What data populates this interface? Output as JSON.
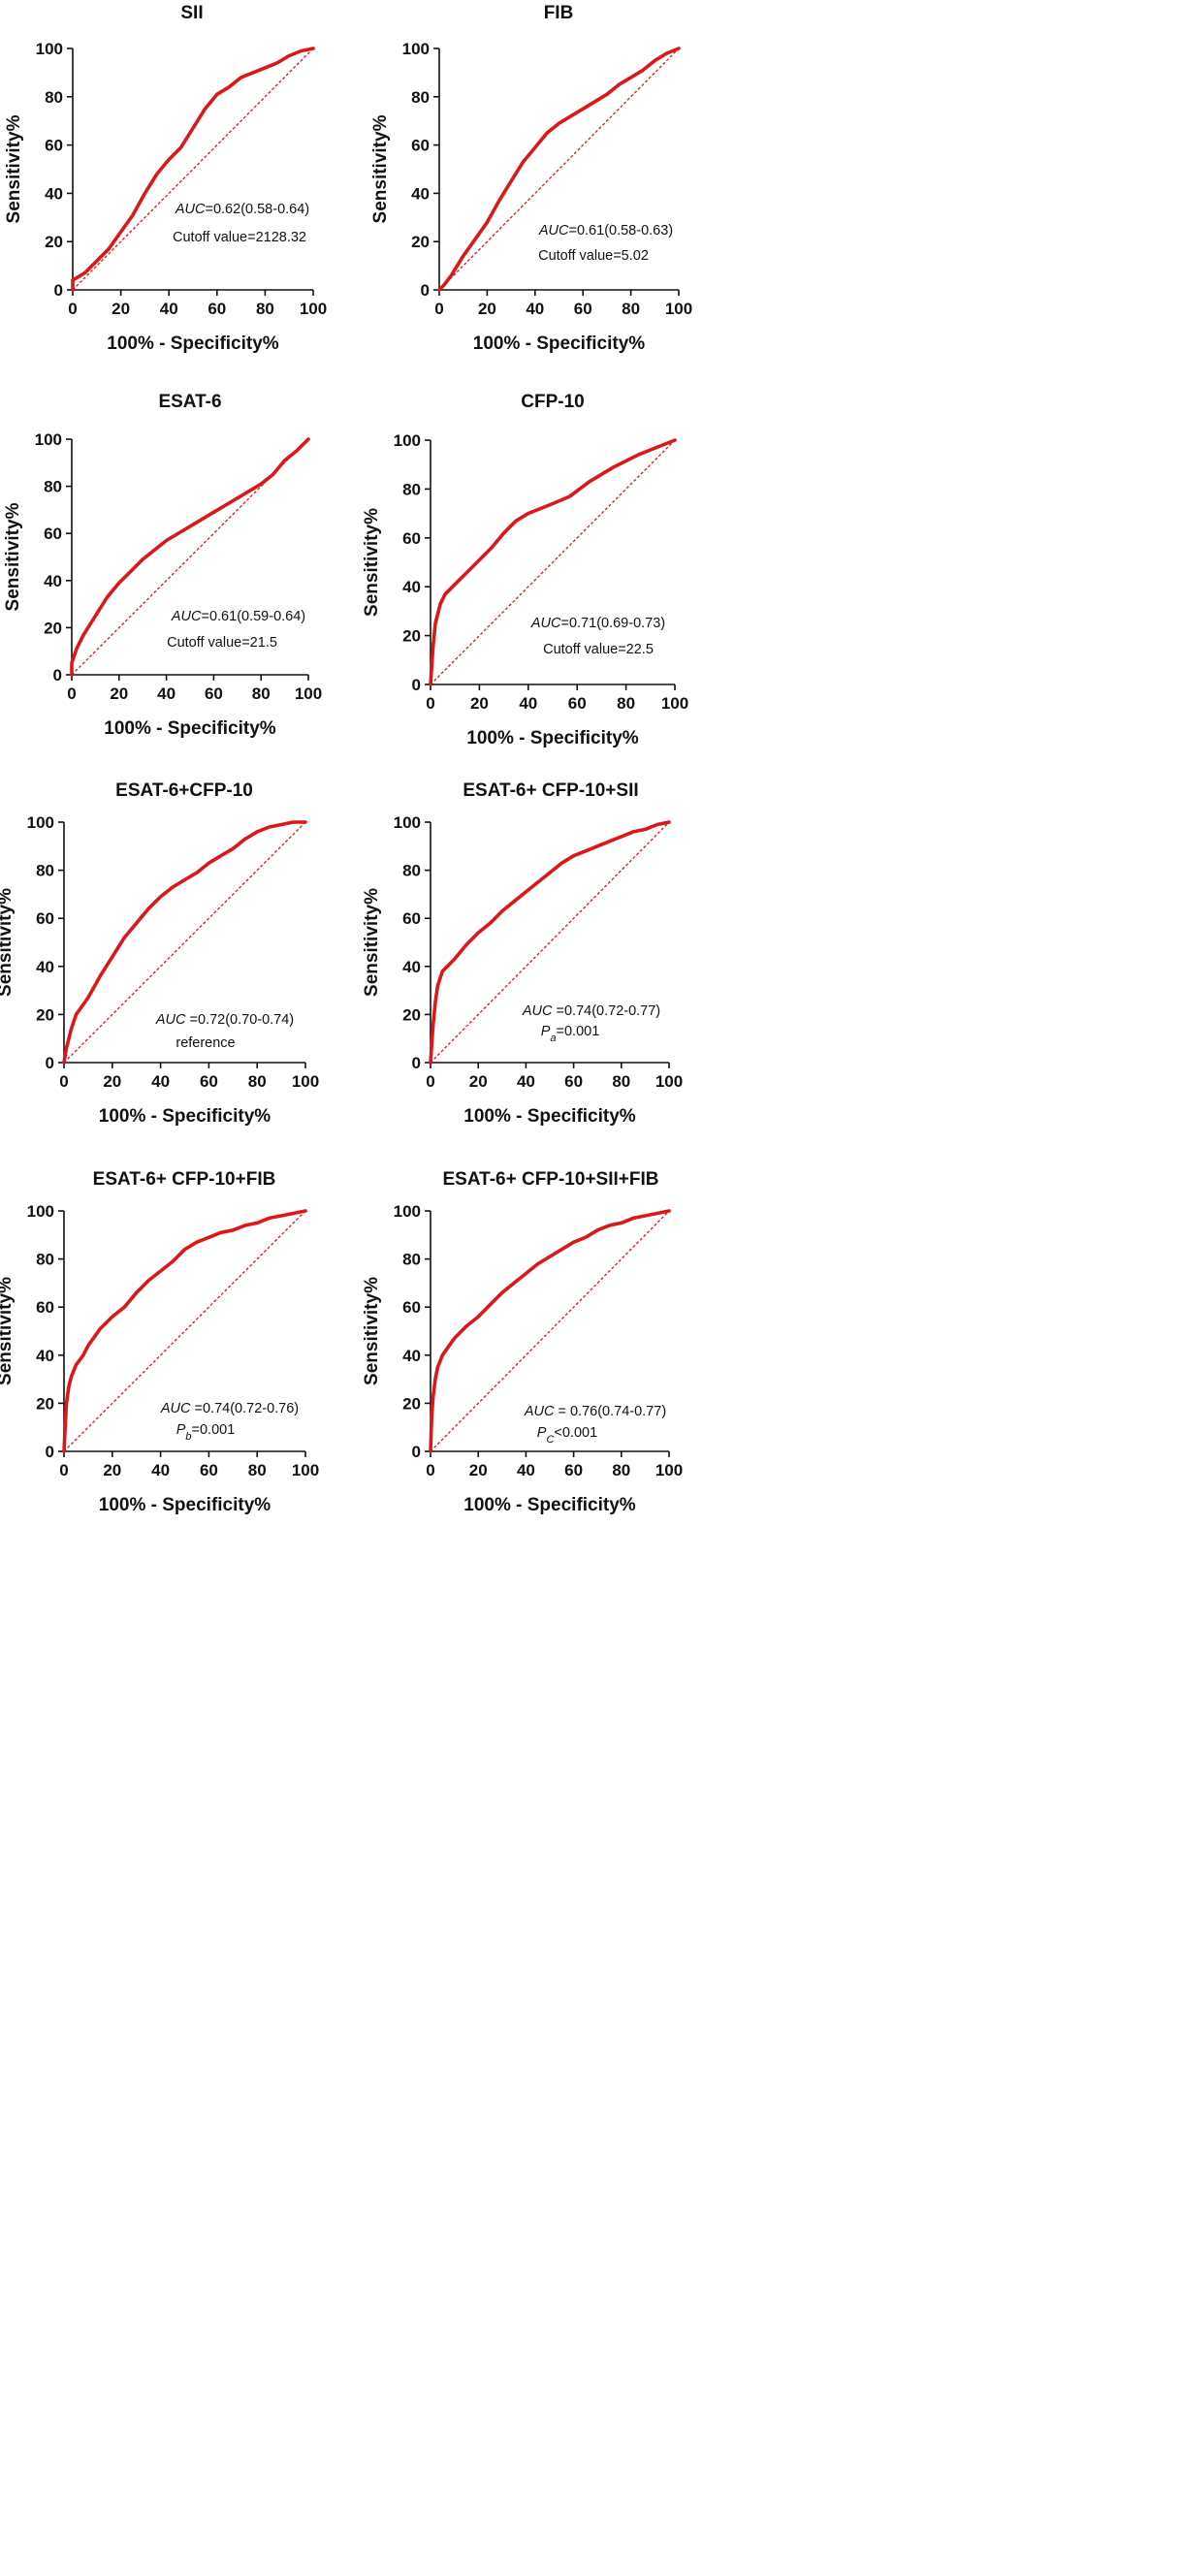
{
  "chart_data": [
    {
      "type": "line",
      "title": "SII",
      "xlabel": "100% - Specificity%",
      "ylabel": "Sensitivity%",
      "xlim": [
        0,
        100
      ],
      "ylim": [
        0,
        100
      ],
      "xticks": [
        0,
        20,
        40,
        60,
        80,
        100
      ],
      "yticks": [
        0,
        20,
        40,
        60,
        80,
        100
      ],
      "grid": false,
      "series": [
        {
          "name": "ROC",
          "x": [
            0,
            0,
            5,
            10,
            15,
            20,
            25,
            30,
            35,
            40,
            45,
            50,
            55,
            60,
            65,
            70,
            75,
            80,
            85,
            90,
            95,
            100
          ],
          "y": [
            0,
            4,
            7,
            12,
            17,
            24,
            31,
            40,
            48,
            54,
            59,
            67,
            75,
            81,
            84,
            88,
            90,
            92,
            94,
            97,
            99,
            100
          ]
        },
        {
          "name": "Reference line",
          "x": [
            0,
            100
          ],
          "y": [
            0,
            100
          ]
        }
      ],
      "annotations": [
        {
          "parts": [
            {
              "text": "AUC",
              "italic": true
            },
            {
              "text": "=0.62(0.58-0.64)"
            }
          ]
        },
        {
          "parts": [
            {
              "text": "Cutoff value=2128.32"
            }
          ]
        }
      ]
    },
    {
      "type": "line",
      "title": "FIB",
      "xlabel": "100% - Specificity%",
      "ylabel": "Sensitivity%",
      "xlim": [
        0,
        100
      ],
      "ylim": [
        0,
        100
      ],
      "xticks": [
        0,
        20,
        40,
        60,
        80,
        100
      ],
      "yticks": [
        0,
        20,
        40,
        60,
        80,
        100
      ],
      "grid": false,
      "series": [
        {
          "name": "ROC",
          "x": [
            0,
            2,
            5,
            10,
            15,
            20,
            25,
            30,
            35,
            40,
            45,
            50,
            55,
            60,
            65,
            70,
            75,
            80,
            85,
            90,
            95,
            100
          ],
          "y": [
            0,
            2,
            6,
            14,
            21,
            28,
            37,
            45,
            53,
            59,
            65,
            69,
            72,
            75,
            78,
            81,
            85,
            88,
            91,
            95,
            98,
            100
          ]
        },
        {
          "name": "Reference line",
          "x": [
            0,
            100
          ],
          "y": [
            0,
            100
          ]
        }
      ],
      "annotations": [
        {
          "parts": [
            {
              "text": "AUC",
              "italic": true
            },
            {
              "text": "=0.61(0.58-0.63)"
            }
          ]
        },
        {
          "parts": [
            {
              "text": "Cutoff value=5.02"
            }
          ]
        }
      ]
    },
    {
      "type": "line",
      "title": "ESAT-6",
      "xlabel": "100% - Specificity%",
      "ylabel": "Sensitivity%",
      "xlim": [
        0,
        100
      ],
      "ylim": [
        0,
        100
      ],
      "xticks": [
        0,
        20,
        40,
        60,
        80,
        100
      ],
      "yticks": [
        0,
        20,
        40,
        60,
        80,
        100
      ],
      "grid": false,
      "series": [
        {
          "name": "ROC",
          "x": [
            0,
            0,
            2,
            5,
            10,
            15,
            20,
            25,
            30,
            35,
            40,
            50,
            60,
            70,
            80,
            85,
            90,
            95,
            100
          ],
          "y": [
            0,
            5,
            11,
            17,
            25,
            33,
            39,
            44,
            49,
            53,
            57,
            63,
            69,
            75,
            81,
            85,
            91,
            95,
            100
          ]
        },
        {
          "name": "Reference line",
          "x": [
            0,
            100
          ],
          "y": [
            0,
            100
          ]
        }
      ],
      "annotations": [
        {
          "parts": [
            {
              "text": "AUC",
              "italic": true
            },
            {
              "text": "=0.61(0.59-0.64)"
            }
          ]
        },
        {
          "parts": [
            {
              "text": "Cutoff value=21.5"
            }
          ]
        }
      ]
    },
    {
      "type": "line",
      "title": "CFP-10",
      "xlabel": "100% - Specificity%",
      "ylabel": "Sensitivity%",
      "xlim": [
        0,
        100
      ],
      "ylim": [
        0,
        100
      ],
      "xticks": [
        0,
        20,
        40,
        60,
        80,
        100
      ],
      "yticks": [
        0,
        20,
        40,
        60,
        80,
        100
      ],
      "grid": false,
      "series": [
        {
          "name": "ROC",
          "x": [
            0,
            1,
            2,
            4,
            6,
            10,
            15,
            20,
            25,
            30,
            35,
            40,
            50,
            57,
            65,
            75,
            85,
            95,
            100
          ],
          "y": [
            0,
            15,
            25,
            33,
            37,
            41,
            46,
            51,
            56,
            62,
            67,
            70,
            74,
            77,
            83,
            89,
            94,
            98,
            100
          ]
        },
        {
          "name": "Reference line",
          "x": [
            0,
            100
          ],
          "y": [
            0,
            100
          ]
        }
      ],
      "annotations": [
        {
          "parts": [
            {
              "text": "AUC",
              "italic": true
            },
            {
              "text": "=0.71(0.69-0.73)"
            }
          ]
        },
        {
          "parts": [
            {
              "text": "Cutoff value=22.5"
            }
          ]
        }
      ]
    },
    {
      "type": "line",
      "title": "ESAT-6+CFP-10",
      "xlabel": "100% - Specificity%",
      "ylabel": "Sensitivity%",
      "xlim": [
        0,
        100
      ],
      "ylim": [
        0,
        100
      ],
      "xticks": [
        0,
        20,
        40,
        60,
        80,
        100
      ],
      "yticks": [
        0,
        20,
        40,
        60,
        80,
        100
      ],
      "grid": false,
      "series": [
        {
          "name": "ROC",
          "x": [
            0,
            1,
            3,
            5,
            10,
            15,
            20,
            25,
            30,
            35,
            40,
            45,
            50,
            55,
            60,
            65,
            70,
            75,
            80,
            85,
            90,
            95,
            100
          ],
          "y": [
            0,
            6,
            14,
            20,
            27,
            36,
            44,
            52,
            58,
            64,
            69,
            73,
            76,
            79,
            83,
            86,
            89,
            93,
            96,
            98,
            99,
            100,
            100
          ]
        },
        {
          "name": "Reference line",
          "x": [
            0,
            100
          ],
          "y": [
            0,
            100
          ]
        }
      ],
      "annotations": [
        {
          "parts": [
            {
              "text": "AUC",
              "italic": true
            },
            {
              "text": " =0.72(0.70-0.74)"
            }
          ]
        },
        {
          "parts": [
            {
              "text": "reference"
            }
          ]
        }
      ]
    },
    {
      "type": "line",
      "title": "ESAT-6+ CFP-10+SII",
      "xlabel": "100% - Specificity%",
      "ylabel": "Sensitivity%",
      "xlim": [
        0,
        100
      ],
      "ylim": [
        0,
        100
      ],
      "xticks": [
        0,
        20,
        40,
        60,
        80,
        100
      ],
      "yticks": [
        0,
        20,
        40,
        60,
        80,
        100
      ],
      "grid": false,
      "series": [
        {
          "name": "ROC",
          "x": [
            0,
            1,
            2,
            3,
            5,
            10,
            15,
            20,
            25,
            30,
            35,
            40,
            45,
            50,
            55,
            60,
            65,
            70,
            75,
            80,
            85,
            90,
            95,
            100
          ],
          "y": [
            0,
            15,
            25,
            32,
            38,
            43,
            49,
            54,
            58,
            63,
            67,
            71,
            75,
            79,
            83,
            86,
            88,
            90,
            92,
            94,
            96,
            97,
            99,
            100
          ]
        },
        {
          "name": "Reference line",
          "x": [
            0,
            100
          ],
          "y": [
            0,
            100
          ]
        }
      ],
      "annotations": [
        {
          "parts": [
            {
              "text": "AUC",
              "italic": true
            },
            {
              "text": " =0.74(0.72-0.77)"
            }
          ]
        },
        {
          "parts": [
            {
              "text": "P",
              "italic": true
            },
            {
              "text": "a",
              "italic": true,
              "sub": true
            },
            {
              "text": "=0.001"
            }
          ]
        }
      ]
    },
    {
      "type": "line",
      "title": "ESAT-6+ CFP-10+FIB",
      "xlabel": "100% - Specificity%",
      "ylabel": "Sensitivity%",
      "xlim": [
        0,
        100
      ],
      "ylim": [
        0,
        100
      ],
      "xticks": [
        0,
        20,
        40,
        60,
        80,
        100
      ],
      "yticks": [
        0,
        20,
        40,
        60,
        80,
        100
      ],
      "grid": false,
      "series": [
        {
          "name": "ROC",
          "x": [
            0,
            0.5,
            1,
            2,
            3,
            5,
            8,
            10,
            15,
            20,
            25,
            30,
            35,
            40,
            45,
            50,
            55,
            60,
            65,
            70,
            75,
            80,
            85,
            90,
            95,
            100
          ],
          "y": [
            0,
            10,
            20,
            27,
            31,
            36,
            40,
            44,
            51,
            56,
            60,
            66,
            71,
            75,
            79,
            84,
            87,
            89,
            91,
            92,
            94,
            95,
            97,
            98,
            99,
            100
          ]
        },
        {
          "name": "Reference line",
          "x": [
            0,
            100
          ],
          "y": [
            0,
            100
          ]
        }
      ],
      "annotations": [
        {
          "parts": [
            {
              "text": "AUC",
              "italic": true
            },
            {
              "text": " =0.74(0.72-0.76)"
            }
          ]
        },
        {
          "parts": [
            {
              "text": "P",
              "italic": true
            },
            {
              "text": "b",
              "italic": true,
              "sub": true
            },
            {
              "text": "=0.001"
            }
          ]
        }
      ]
    },
    {
      "type": "line",
      "title": "ESAT-6+ CFP-10+SII+FIB",
      "xlabel": "100% - Specificity%",
      "ylabel": "Sensitivity%",
      "xlim": [
        0,
        100
      ],
      "ylim": [
        0,
        100
      ],
      "xticks": [
        0,
        20,
        40,
        60,
        80,
        100
      ],
      "yticks": [
        0,
        20,
        40,
        60,
        80,
        100
      ],
      "grid": false,
      "series": [
        {
          "name": "ROC",
          "x": [
            0,
            0.5,
            1,
            2,
            3,
            5,
            10,
            15,
            20,
            25,
            30,
            35,
            40,
            45,
            50,
            55,
            60,
            65,
            70,
            75,
            80,
            85,
            90,
            95,
            100
          ],
          "y": [
            0,
            14,
            22,
            30,
            35,
            40,
            47,
            52,
            56,
            61,
            66,
            70,
            74,
            78,
            81,
            84,
            87,
            89,
            92,
            94,
            95,
            97,
            98,
            99,
            100
          ]
        },
        {
          "name": "Reference line",
          "x": [
            0,
            100
          ],
          "y": [
            0,
            100
          ]
        }
      ],
      "annotations": [
        {
          "parts": [
            {
              "text": "AUC",
              "italic": true
            },
            {
              "text": " = 0.76(0.74-0.77)"
            }
          ]
        },
        {
          "parts": [
            {
              "text": "P",
              "italic": true
            },
            {
              "text": "C",
              "italic": true,
              "sub": true
            },
            {
              "text": "<0.001"
            }
          ]
        }
      ]
    }
  ]
}
